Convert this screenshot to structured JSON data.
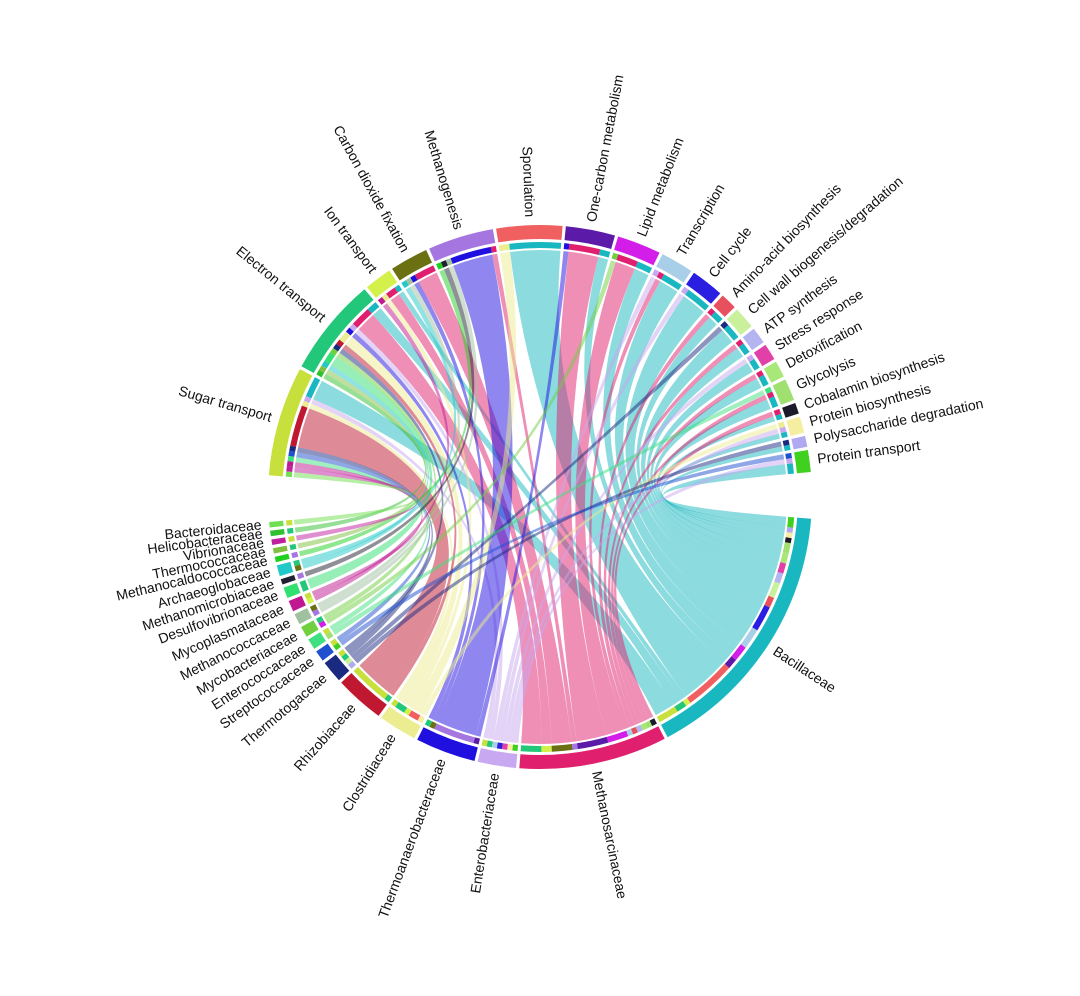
{
  "chart_data": {
    "type": "chord",
    "categories": [
      "Sugar transport",
      "Electron transport",
      "Ion transport",
      "Carbon dioxide fixation",
      "Methanogenesis",
      "Sporulation",
      "One-carbon metabolism",
      "Lipid metabolism",
      "Transcription",
      "Cell cycle",
      "Amino-acid biosynthesis",
      "Cell wall biogenesis/degradation",
      "ATP synthesis",
      "Stress response",
      "Detoxification",
      "Glycolysis",
      "Cobalamin biosynthesis",
      "Protein biosynthesis",
      "Polysaccharide degradation",
      "Protein transport"
    ],
    "colors": [
      "#c8e03c",
      "#22c77a",
      "#d4f04a",
      "#6b7012",
      "#a575e0",
      "#f06060",
      "#5b1aa8",
      "#d21ee8",
      "#a9cfe8",
      "#2a1fe0",
      "#e8505e",
      "#c9f09a",
      "#b4b4f0",
      "#e040a8",
      "#a8e878",
      "#9fe070",
      "#1a1a2a",
      "#f5eea0",
      "#b0a8f0",
      "#40d020"
    ],
    "series": [
      {
        "name": "Bacillaceae",
        "color": "#19b8c0",
        "values": [
          2,
          1,
          0.5,
          0,
          0,
          5,
          1,
          1.5,
          2,
          2.5,
          1,
          1.5,
          1,
          1,
          1,
          1,
          0.5,
          0.5,
          0.5,
          1
        ]
      },
      {
        "name": "Methanosarcinaceae",
        "color": "#e0206e",
        "values": [
          0,
          2,
          1,
          2,
          0.5,
          0,
          3,
          2,
          0.5,
          0,
          0.5,
          0,
          0.5,
          0,
          0.5,
          0.5,
          0.5,
          0,
          0,
          0
        ]
      },
      {
        "name": "Enterobacteriaceae",
        "color": "#c8a8f0",
        "values": [
          0.5,
          0.5,
          0,
          0,
          0,
          0,
          0,
          0,
          0.5,
          0.5,
          0,
          0,
          0,
          0.5,
          0,
          0,
          0,
          0.5,
          0,
          0.5
        ]
      },
      {
        "name": "Thermoanaerobacteraceae",
        "color": "#2010e0",
        "values": [
          0,
          0.5,
          0,
          0.5,
          4,
          0,
          0.5,
          0,
          0,
          0,
          0,
          0,
          0,
          0,
          0,
          0,
          0,
          0,
          0,
          0
        ]
      },
      {
        "name": "Clostridiaceae",
        "color": "#ecec90",
        "values": [
          0.5,
          1,
          0.5,
          0,
          0,
          1,
          0,
          0,
          0,
          0,
          0,
          0,
          0,
          0,
          0,
          0,
          0,
          0.5,
          0,
          0
        ]
      },
      {
        "name": "Rhizobiaceae",
        "color": "#c01830",
        "values": [
          4,
          0.5,
          0,
          0,
          0,
          0,
          0,
          0,
          0,
          0,
          0,
          0,
          0,
          0,
          0,
          0,
          0,
          0,
          0,
          0
        ]
      },
      {
        "name": "Thermotogaceae",
        "color": "#1a2a80",
        "values": [
          0.5,
          0.5,
          0,
          0,
          0,
          0,
          0,
          0,
          0,
          0,
          0,
          0.5,
          0,
          0,
          0,
          0,
          0,
          0,
          0.5,
          0
        ]
      },
      {
        "name": "Streptococcaceae",
        "color": "#2050d0",
        "values": [
          0.5,
          0,
          0,
          0,
          0,
          0,
          0,
          0,
          0,
          0,
          0,
          0,
          0,
          0,
          0,
          0,
          0,
          0,
          0,
          0.5
        ]
      },
      {
        "name": "Enterococcaceae",
        "color": "#40e080",
        "values": [
          0.5,
          0,
          0,
          0,
          0,
          0,
          0,
          0,
          0,
          0,
          0,
          0,
          0,
          0,
          0,
          0.5,
          0,
          0,
          0,
          0
        ]
      },
      {
        "name": "Mycobacteriaceae",
        "color": "#70d040",
        "values": [
          0,
          0.5,
          0,
          0,
          0,
          0,
          0,
          0.5,
          0,
          0,
          0,
          0,
          0,
          0,
          0,
          0,
          0,
          0,
          0,
          0
        ]
      },
      {
        "name": "Methanococcaceae",
        "color": "#a0c0a0",
        "values": [
          0,
          0,
          0,
          0.5,
          0.5,
          0,
          0,
          0,
          0,
          0,
          0,
          0,
          0,
          0,
          0,
          0,
          0,
          0,
          0,
          0
        ]
      },
      {
        "name": "Mycoplasmataceae",
        "color": "#c01890",
        "values": [
          0.5,
          0,
          0.5,
          0,
          0,
          0,
          0,
          0,
          0,
          0,
          0,
          0,
          0,
          0,
          0,
          0,
          0,
          0,
          0,
          0
        ]
      },
      {
        "name": "Desulfovibrionaceae",
        "color": "#30e070",
        "values": [
          0,
          1,
          0,
          0,
          0,
          0,
          0,
          0,
          0,
          0,
          0,
          0,
          0,
          0,
          0,
          0,
          0,
          0,
          0,
          0
        ]
      },
      {
        "name": "Methanomicrobiaceae",
        "color": "#202030",
        "values": [
          0,
          0,
          0,
          0,
          0.5,
          0,
          0,
          0,
          0,
          0,
          0,
          0,
          0,
          0,
          0,
          0,
          0,
          0,
          0,
          0
        ]
      },
      {
        "name": "Archaeoglobaceae",
        "color": "#20c8c8",
        "values": [
          0,
          0.5,
          0,
          0.5,
          0,
          0,
          0,
          0,
          0,
          0,
          0,
          0,
          0,
          0,
          0,
          0,
          0,
          0,
          0,
          0
        ]
      },
      {
        "name": "Methanocaldococcaceae",
        "color": "#20d020",
        "values": [
          0,
          0,
          0,
          0,
          0.5,
          0,
          0,
          0,
          0,
          0,
          0,
          0,
          0,
          0,
          0,
          0,
          0,
          0,
          0,
          0
        ]
      },
      {
        "name": "Thermococcaceae",
        "color": "#80c040",
        "values": [
          0,
          0.5,
          0,
          0,
          0,
          0,
          0,
          0,
          0,
          0,
          0,
          0,
          0,
          0,
          0,
          0,
          0,
          0,
          0,
          0
        ]
      },
      {
        "name": "Vibrionaceae",
        "color": "#c020a0",
        "values": [
          0.5,
          0,
          0,
          0,
          0,
          0,
          0,
          0,
          0,
          0,
          0,
          0,
          0,
          0,
          0,
          0,
          0,
          0,
          0,
          0
        ]
      },
      {
        "name": "Helicobacteraceae",
        "color": "#30c030",
        "values": [
          0,
          0.5,
          0,
          0,
          0,
          0,
          0,
          0,
          0,
          0,
          0,
          0,
          0,
          0,
          0,
          0,
          0,
          0,
          0,
          0
        ]
      },
      {
        "name": "Bacteroidaceae",
        "color": "#70e050",
        "values": [
          0.5,
          0,
          0,
          0,
          0,
          0,
          0,
          0,
          0,
          0,
          0,
          0,
          0,
          0,
          0,
          0,
          0,
          0,
          0,
          0
        ]
      }
    ]
  }
}
